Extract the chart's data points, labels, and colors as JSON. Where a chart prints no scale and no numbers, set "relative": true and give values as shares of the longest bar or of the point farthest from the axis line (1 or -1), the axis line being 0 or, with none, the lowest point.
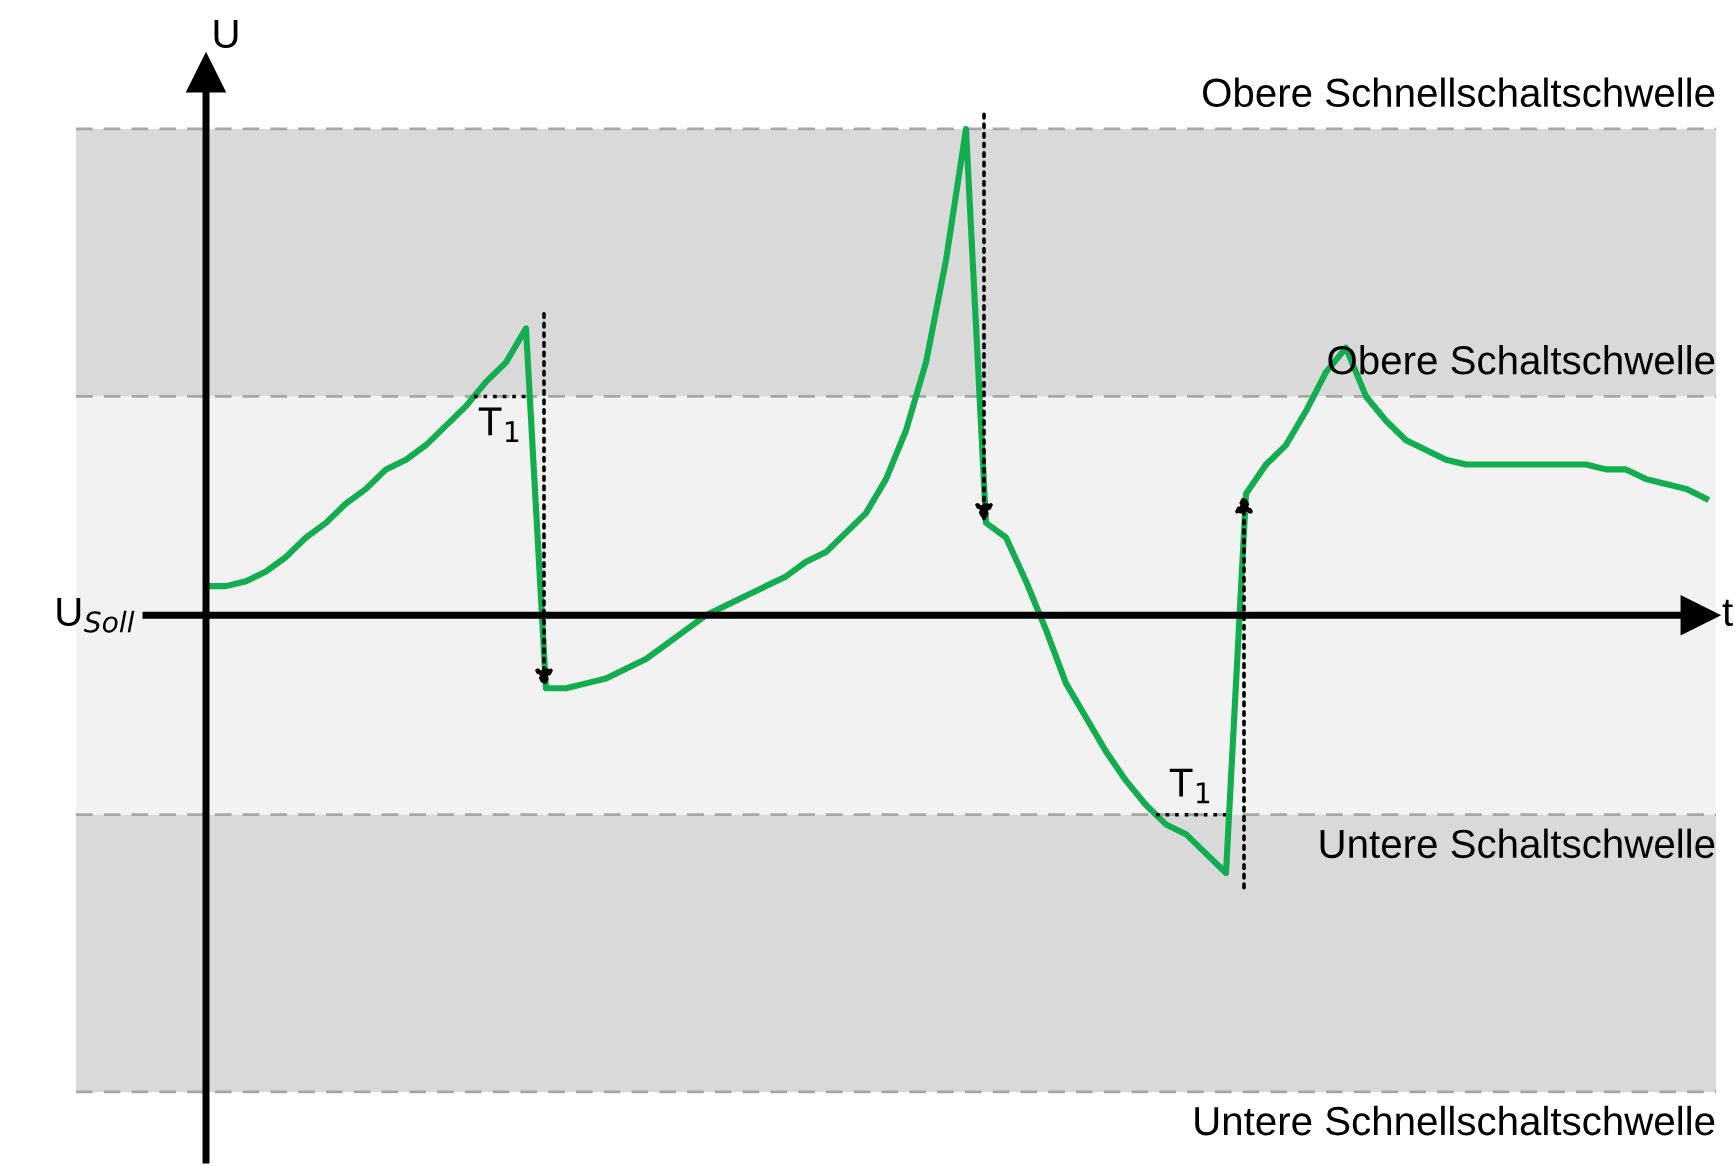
{
  "chart_data": {
    "type": "line",
    "relative": true,
    "xlabel": "t",
    "ylabel": "U",
    "categories": [
      null,
      null,
      null,
      null,
      null,
      null,
      null,
      null,
      null,
      null,
      null,
      null,
      null,
      null,
      null,
      null,
      null,
      null,
      null,
      null,
      null,
      null,
      null,
      null,
      null,
      null,
      null,
      null,
      null,
      null,
      null,
      null,
      null,
      null,
      null,
      null,
      null,
      null,
      null,
      null,
      null,
      null,
      null,
      null,
      null,
      null,
      null,
      null,
      null,
      null,
      null,
      null,
      null,
      null,
      null,
      null,
      null,
      null,
      null,
      null,
      null,
      null,
      null,
      null,
      null,
      null,
      null,
      null,
      null,
      null,
      null,
      null,
      null,
      null,
      null,
      null
    ],
    "series": [
      {
        "color": "#12ad4f",
        "values": [
          0.06,
          0.06,
          0.07,
          0.09,
          0.12,
          0.16,
          0.19,
          0.23,
          0.26,
          0.3,
          0.32,
          0.35,
          0.39,
          0.43,
          0.48,
          0.52,
          0.59,
          -0.15,
          -0.15,
          -0.14,
          -0.13,
          -0.11,
          -0.09,
          -0.06,
          -0.03,
          0.0,
          0.02,
          0.04,
          0.06,
          0.08,
          0.11,
          0.13,
          0.17,
          0.21,
          0.28,
          0.38,
          0.52,
          0.73,
          1.0,
          0.19,
          0.16,
          0.07,
          -0.03,
          -0.14,
          -0.21,
          -0.28,
          -0.34,
          -0.39,
          -0.43,
          -0.45,
          -0.49,
          -0.53,
          0.25,
          0.31,
          0.35,
          0.42,
          0.5,
          0.55,
          0.45,
          0.4,
          0.36,
          0.34,
          0.32,
          0.31,
          0.31,
          0.31,
          0.31,
          0.31,
          0.31,
          0.31,
          0.3,
          0.3,
          0.28,
          0.27,
          0.26,
          0.24
        ]
      }
    ],
    "ref_lines": [
      {
        "axis": "y",
        "value": 1.0,
        "label": "Obere Schnellschaltschwelle",
        "color": "#a6a6a6",
        "line_style": "dashed"
      },
      {
        "axis": "y",
        "value": 0.45,
        "label": "Obere Schaltschwelle",
        "color": "#a6a6a6",
        "line_style": "dashed"
      },
      {
        "axis": "y",
        "value": -0.41,
        "label": "Untere Schaltschwelle",
        "color": "#a6a6a6",
        "line_style": "dashed"
      },
      {
        "axis": "y",
        "value": -0.98,
        "label": "Untere Schnellschaltschwelle",
        "color": "#a6a6a6",
        "line_style": "dashed"
      }
    ],
    "bands": [
      {
        "axis": "y",
        "from": 0.45,
        "to": 1.0,
        "color": "#d9d9d9"
      },
      {
        "axis": "y",
        "from": -0.41,
        "to": 0.45,
        "color": "#f2f2f2"
      },
      {
        "axis": "y",
        "from": -0.98,
        "to": -0.41,
        "color": "#d9d9d9"
      }
    ],
    "annotations": [
      "U$_{Soll}$",
      "T$_{1}$",
      "T$_{1}$"
    ]
  }
}
